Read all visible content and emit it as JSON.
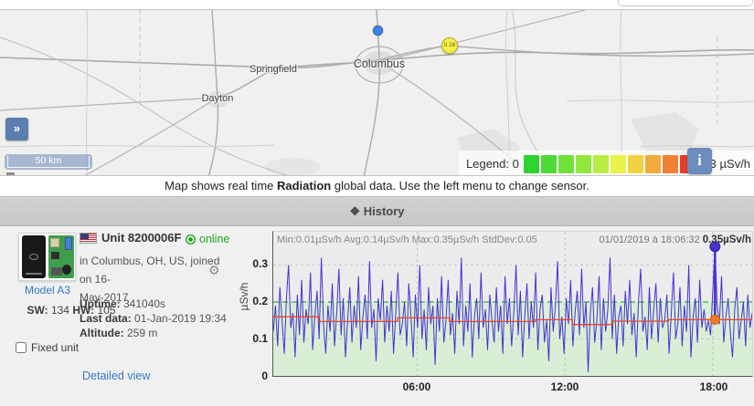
{
  "map": {
    "cities": [
      {
        "name": "Columbus"
      },
      {
        "name": "Springfield"
      },
      {
        "name": "Dayton"
      }
    ],
    "selected_marker_color": "#3d85e8",
    "station_marker": {
      "value": "0.16",
      "color": "#f3ef49"
    },
    "expand_button": "»",
    "scale_label": "50 km",
    "legend": {
      "label": "Legend: 0",
      "max_label": "0.3 µSv/h",
      "colors": [
        "#2fd32f",
        "#50da3a",
        "#70e13a",
        "#92e73c",
        "#b8ee41",
        "#eaf24b",
        "#f2d243",
        "#f2aa3b",
        "#ef8136",
        "#ea3b29"
      ]
    },
    "info_button": "i"
  },
  "caption": {
    "prefix": "Map shows real time ",
    "bold": "Radiation",
    "suffix": " global data. Use the left menu to change sensor."
  },
  "history": {
    "title": "❖ History",
    "device": {
      "model_link": "Model A3",
      "swhw_html_label1": "SW:",
      "sw_value": "134",
      "swhw_html_label2": "HW:",
      "hw_value": "105",
      "fixed_label": "Fixed unit",
      "detail_link": "Detailed view"
    },
    "unit": {
      "title": "Unit 8200006F",
      "status": "online",
      "desc_line1": "in Columbus, OH, US, joined on 16-",
      "desc_line2": "May-2017",
      "gear_icon": "⚙",
      "stats": [
        {
          "label": "Uptime:",
          "value": " 341040s"
        },
        {
          "label": "Last data:",
          "value": " 01-Jan-2019 19:34"
        },
        {
          "label": "Altitude:",
          "value": " 259 m"
        }
      ]
    }
  },
  "chart_data": {
    "type": "line",
    "title_stats": "Min:0.01µSv/h Avg:0.14µSv/h Max:0.35µSv/h StdDev:0.05",
    "tooltip": {
      "datetime": "01/01/2019 à 18:06:32 ",
      "value": "0.35µSv/h"
    },
    "ylabel": "µSv/h",
    "yticks": [
      "0",
      "0.1",
      "0.2",
      "0.3"
    ],
    "ylim": [
      0,
      0.39
    ],
    "xlim_hours": [
      0.15,
      19.6
    ],
    "xticks": [
      {
        "h": 6,
        "label": "06:00"
      },
      {
        "h": 12,
        "label": "12:00"
      },
      {
        "h": 18,
        "label": "18:00"
      }
    ],
    "grid_y": [
      0.1,
      0.3
    ],
    "safe_band": {
      "from": 0,
      "to": 0.2,
      "fill": "#d9efd5",
      "edge": "#3faa3f"
    },
    "series": [
      {
        "name": "radiation",
        "color": "#4a2fd6",
        "values": [
          0.12,
          0.19,
          0.08,
          0.24,
          0.15,
          0.06,
          0.21,
          0.3,
          0.13,
          0.17,
          0.05,
          0.22,
          0.11,
          0.26,
          0.09,
          0.18,
          0.14,
          0.28,
          0.07,
          0.16,
          0.23,
          0.1,
          0.32,
          0.14,
          0.06,
          0.19,
          0.12,
          0.25,
          0.08,
          0.17,
          0.29,
          0.11,
          0.21,
          0.05,
          0.15,
          0.24,
          0.09,
          0.19,
          0.13,
          0.27,
          0.07,
          0.16,
          0.22,
          0.1,
          0.31,
          0.13,
          0.18,
          0.04,
          0.21,
          0.15,
          0.26,
          0.09,
          0.19,
          0.12,
          0.23,
          0.06,
          0.17,
          0.28,
          0.11,
          0.14,
          0.2,
          0.08,
          0.25,
          0.16,
          0.05,
          0.22,
          0.13,
          0.3,
          0.1,
          0.18,
          0.07,
          0.24,
          0.14,
          0.19,
          0.03,
          0.21,
          0.12,
          0.27,
          0.09,
          0.15,
          0.26,
          0.11,
          0.17,
          0.06,
          0.23,
          0.14,
          0.32,
          0.08,
          0.19,
          0.12,
          0.25,
          0.05,
          0.16,
          0.21,
          0.1,
          0.28,
          0.13,
          0.18,
          0.07,
          0.22,
          0.15,
          0.09,
          0.24,
          0.12,
          0.19,
          0.06,
          0.27,
          0.14,
          0.21,
          0.08,
          0.17,
          0.3,
          0.11,
          0.23,
          0.05,
          0.16,
          0.25,
          0.1,
          0.2,
          0.13,
          0.28,
          0.07,
          0.18,
          0.22,
          0.09,
          0.15,
          0.04,
          0.24,
          0.12,
          0.19,
          0.31,
          0.1,
          0.16,
          0.06,
          0.21,
          0.14,
          0.26,
          0.08,
          0.17,
          0.23,
          0.11,
          0.29,
          0.13,
          0.2,
          0.01,
          0.17,
          0.24,
          0.09,
          0.15,
          0.27,
          0.07,
          0.21,
          0.12,
          0.18,
          0.32,
          0.1,
          0.22,
          0.06,
          0.16,
          0.19,
          0.08,
          0.23,
          0.14,
          0.26,
          0.11,
          0.17,
          0.05,
          0.2,
          0.29,
          0.12,
          0.16,
          0.07,
          0.24,
          0.1,
          0.18,
          0.25,
          0.09,
          0.21,
          0.13,
          0.15,
          0.22,
          0.06,
          0.17,
          0.28,
          0.1,
          0.14,
          0.24,
          0.08,
          0.19,
          0.12,
          0.3,
          0.05,
          0.16,
          0.21,
          0.09,
          0.26,
          0.13,
          0.18,
          0.12,
          0.15,
          0.11,
          0.23,
          0.35,
          0.19,
          0.14,
          0.27,
          0.09,
          0.16,
          0.21,
          0.12,
          0.05,
          0.18,
          0.24,
          0.1,
          0.15,
          0.2,
          0.08,
          0.22,
          0.13,
          0.17
        ]
      },
      {
        "name": "average",
        "color": "#e8452a",
        "points": [
          [
            0.15,
            0.16
          ],
          [
            2.0,
            0.16
          ],
          [
            2.0,
            0.147
          ],
          [
            5.2,
            0.147
          ],
          [
            5.2,
            0.157
          ],
          [
            7.3,
            0.157
          ],
          [
            7.3,
            0.147
          ],
          [
            10.8,
            0.147
          ],
          [
            10.8,
            0.152
          ],
          [
            12.3,
            0.152
          ],
          [
            12.3,
            0.139
          ],
          [
            13.9,
            0.139
          ],
          [
            13.9,
            0.148
          ],
          [
            16.2,
            0.148
          ],
          [
            16.2,
            0.152
          ],
          [
            19.6,
            0.152
          ]
        ]
      }
    ],
    "max_marker": {
      "h": 18.09,
      "value": 0.35,
      "color": "#4433cc"
    },
    "avg_marker": {
      "h": 18.09,
      "value": 0.152,
      "color": "#f07a25"
    },
    "legend_position": "none",
    "grid": true
  }
}
